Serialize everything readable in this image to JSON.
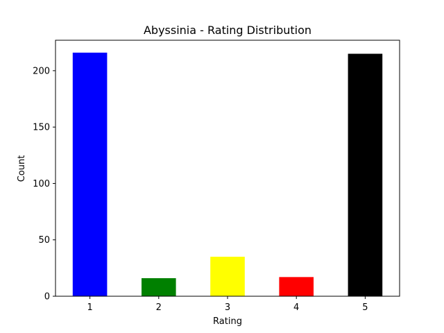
{
  "chart_data": {
    "type": "bar",
    "title": "Abyssinia - Rating Distribution",
    "xlabel": "Rating",
    "ylabel": "Count",
    "categories": [
      "1",
      "2",
      "3",
      "4",
      "5"
    ],
    "values": [
      216,
      16,
      35,
      17,
      215
    ],
    "colors": [
      "#0000ff",
      "#008000",
      "#ffff00",
      "#ff0000",
      "#000000"
    ],
    "ylim": [
      0,
      227
    ],
    "yticks": [
      0,
      50,
      100,
      150,
      200
    ],
    "grid": false,
    "legend": "none"
  }
}
